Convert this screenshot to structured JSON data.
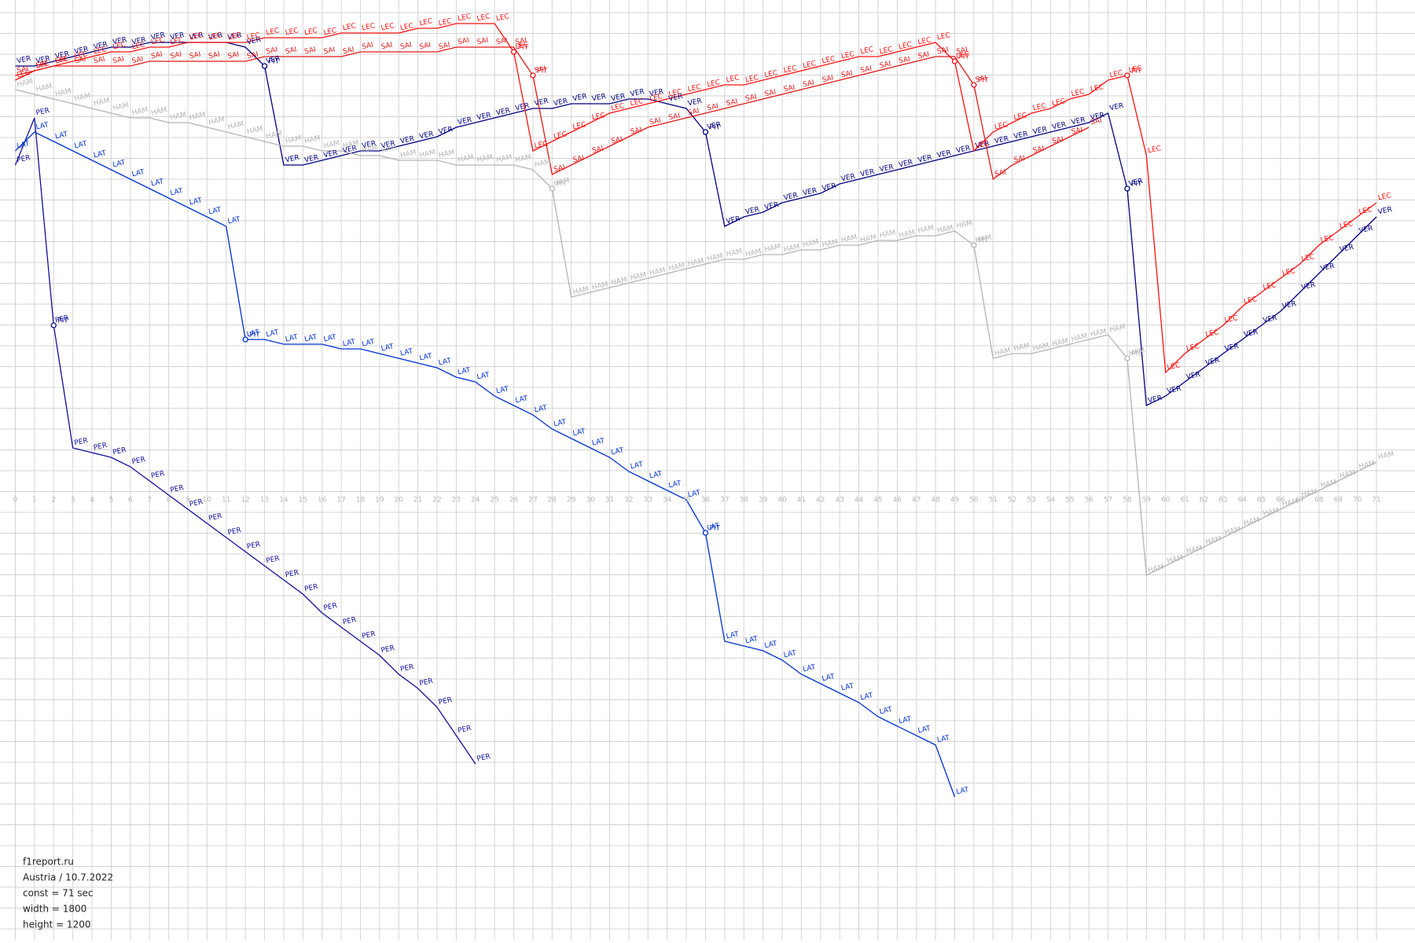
{
  "chart_data": {
    "type": "line",
    "x": [
      0,
      1,
      2,
      3,
      4,
      5,
      6,
      7,
      8,
      9,
      10,
      11,
      12,
      13,
      14,
      15,
      16,
      17,
      18,
      19,
      20,
      21,
      22,
      23,
      24,
      25,
      26,
      27,
      28,
      29,
      30,
      31,
      32,
      33,
      34,
      35,
      36,
      37,
      38,
      39,
      40,
      41,
      42,
      43,
      44,
      45,
      46,
      47,
      48,
      49,
      50,
      51,
      52,
      53,
      54,
      55,
      56,
      57,
      58,
      59,
      60,
      61,
      62,
      63,
      64,
      65,
      66,
      67,
      68,
      69,
      70,
      71
    ],
    "xlim": [
      0,
      71
    ],
    "xticks": [
      0,
      1,
      2,
      3,
      4,
      5,
      6,
      7,
      8,
      9,
      10,
      11,
      12,
      13,
      14,
      15,
      16,
      17,
      18,
      19,
      20,
      21,
      22,
      23,
      24,
      25,
      26,
      27,
      28,
      29,
      30,
      31,
      32,
      33,
      34,
      35,
      36,
      37,
      38,
      39,
      40,
      41,
      42,
      43,
      44,
      45,
      46,
      47,
      48,
      49,
      50,
      51,
      52,
      53,
      54,
      55,
      56,
      57,
      58,
      59,
      60,
      61,
      62,
      63,
      64,
      65,
      66,
      67,
      68,
      69,
      70,
      71
    ],
    "ylim": [
      -94,
      106
    ],
    "grid": true,
    "pit_label": "PIT",
    "series": [
      {
        "name": "VER",
        "color": "#000080",
        "pits": [
          13,
          36,
          58
        ],
        "values": [
          92,
          92,
          93,
          94,
          95,
          96,
          96,
          97,
          97,
          97,
          97,
          97,
          96,
          92,
          71,
          71,
          72,
          73,
          74,
          74,
          75,
          76,
          77,
          79,
          80,
          81,
          82,
          83,
          83,
          84,
          84,
          84,
          85,
          85,
          84,
          83,
          78,
          58,
          60,
          61,
          63,
          64,
          65,
          67,
          68,
          69,
          70,
          71,
          72,
          73,
          74,
          75,
          76,
          77,
          78,
          79,
          80,
          82,
          66,
          20,
          22,
          25,
          28,
          31,
          34,
          37,
          40,
          44,
          48,
          52,
          56,
          60
        ]
      },
      {
        "name": "LEC",
        "color": "#ff1010",
        "pits": [
          26,
          49,
          58
        ],
        "values": [
          89,
          91,
          92,
          93,
          94,
          95,
          95,
          96,
          96,
          97,
          97,
          97,
          97,
          98,
          98,
          98,
          98,
          99,
          99,
          99,
          99,
          100,
          100,
          101,
          101,
          101,
          95,
          74,
          76,
          78,
          80,
          82,
          83,
          84,
          85,
          86,
          87,
          88,
          88,
          89,
          90,
          91,
          92,
          93,
          94,
          94,
          95,
          96,
          97,
          93,
          74,
          78,
          80,
          82,
          83,
          85,
          86,
          89,
          90,
          73,
          27,
          31,
          34,
          37,
          41,
          44,
          47,
          50,
          54,
          57,
          60,
          63
        ]
      },
      {
        "name": "SAI",
        "color": "#e01818",
        "pits": [
          27,
          50
        ],
        "values": [
          90,
          91,
          92,
          92,
          92,
          92,
          92,
          93,
          93,
          93,
          93,
          93,
          93,
          94,
          94,
          94,
          94,
          94,
          95,
          95,
          95,
          95,
          95,
          96,
          96,
          96,
          96,
          90,
          69,
          71,
          73,
          75,
          77,
          79,
          80,
          81,
          82,
          83,
          84,
          85,
          86,
          87,
          88,
          89,
          90,
          91,
          92,
          93,
          94,
          94,
          88,
          68,
          71,
          73,
          75,
          77,
          79,
          null,
          null,
          null,
          null,
          null,
          null,
          null,
          null,
          null,
          null,
          null,
          null,
          null,
          null,
          null
        ]
      },
      {
        "name": "HAM",
        "color": "#b4b4b4",
        "pits": [
          28,
          50,
          58
        ],
        "values": [
          87,
          86,
          85,
          84,
          83,
          82,
          81,
          81,
          80,
          80,
          79,
          78,
          77,
          76,
          75,
          75,
          74,
          74,
          73,
          73,
          72,
          72,
          72,
          71,
          71,
          71,
          71,
          70,
          66,
          43,
          44,
          45,
          46,
          47,
          48,
          49,
          50,
          51,
          51,
          52,
          52,
          53,
          53,
          54,
          54,
          55,
          55,
          56,
          56,
          57,
          54,
          30,
          31,
          31,
          32,
          33,
          34,
          35,
          30,
          -16,
          -14,
          -12,
          -10,
          -8,
          -6,
          -4,
          -2,
          0,
          2,
          4,
          6,
          8
        ]
      },
      {
        "name": "PER",
        "color": "#10109a",
        "pits": [
          2
        ],
        "values": [
          71,
          81,
          37,
          11,
          10,
          9,
          7,
          4,
          1,
          -2,
          -5,
          -8,
          -11,
          -14,
          -17,
          -20,
          -24,
          -27,
          -30,
          -33,
          -37,
          -40,
          -44,
          -50,
          -56,
          null,
          null,
          null,
          null,
          null,
          null,
          null,
          null,
          null,
          null,
          null,
          null,
          null,
          null,
          null,
          null,
          null,
          null,
          null,
          null,
          null,
          null,
          null,
          null,
          null,
          null,
          null,
          null,
          null,
          null,
          null,
          null,
          null,
          null,
          null,
          null,
          null,
          null,
          null,
          null,
          null,
          null,
          null,
          null,
          null,
          null,
          null
        ]
      },
      {
        "name": "LAT",
        "color": "#0030d0",
        "pits": [
          12,
          36
        ],
        "values": [
          74,
          78,
          76,
          74,
          72,
          70,
          68,
          66,
          64,
          62,
          60,
          58,
          34,
          34,
          33,
          33,
          33,
          32,
          32,
          31,
          30,
          29,
          28,
          26,
          25,
          22,
          20,
          18,
          15,
          13,
          11,
          9,
          6,
          4,
          2,
          0,
          -7,
          -30,
          -31,
          -32,
          -34,
          -37,
          -39,
          -41,
          -43,
          -46,
          -48,
          -50,
          -52,
          -63,
          null,
          null,
          null,
          null,
          null,
          null,
          null,
          null,
          null,
          null,
          null,
          null,
          null,
          null,
          null,
          null,
          null,
          null,
          null,
          null,
          null,
          null
        ]
      }
    ],
    "info": [
      "f1report.ru",
      "Austria / 10.7.2022",
      "const = 71 sec",
      "width = 1800",
      "height = 1200"
    ]
  }
}
